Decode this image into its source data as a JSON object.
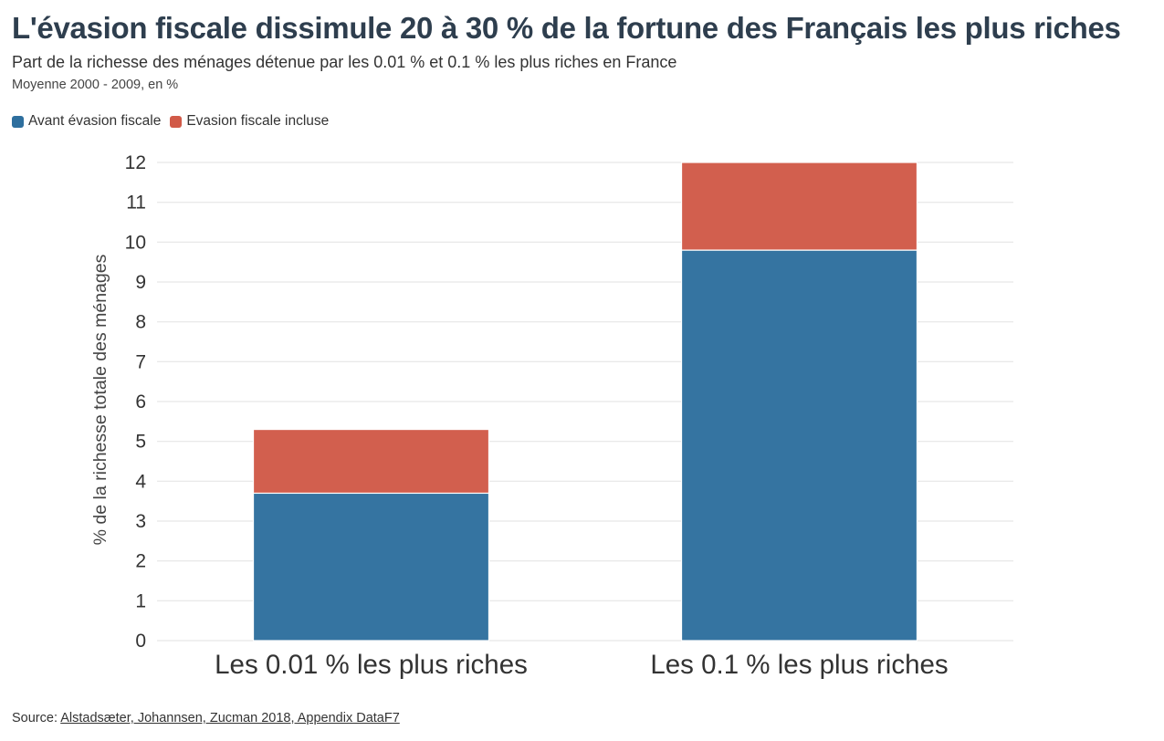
{
  "title": "L'évasion fiscale dissimule 20 à 30 % de la fortune des Français les plus riches",
  "subtitle": "Part de la richesse des ménages détenue par les 0.01 % et 0.1 % les plus riches en France",
  "note": "Moyenne 2000 - 2009, en %",
  "source": {
    "label": "Source: ",
    "link_text": "Alstadsæter, Johannsen, Zucman 2018, Appendix DataF7"
  },
  "colors": {
    "before": "#2e6f9e",
    "evasion": "#d15a48",
    "grid": "#e6e6e6",
    "axis_text": "#333333"
  },
  "chart_data": {
    "type": "bar",
    "stacked": true,
    "categories": [
      "Les 0.01 % les plus riches",
      "Les 0.1 % les plus riches"
    ],
    "series": [
      {
        "name": "Avant évasion fiscale",
        "values": [
          3.7,
          9.8
        ]
      },
      {
        "name": "Evasion fiscale incluse",
        "values": [
          1.6,
          2.2
        ]
      }
    ],
    "xlabel": "",
    "ylabel": "% de la richesse totale des ménages",
    "ylim": [
      0,
      12
    ],
    "yticks": [
      0,
      1,
      2,
      3,
      4,
      5,
      6,
      7,
      8,
      9,
      10,
      11,
      12
    ],
    "grid": true,
    "legend_position": "top-left"
  }
}
